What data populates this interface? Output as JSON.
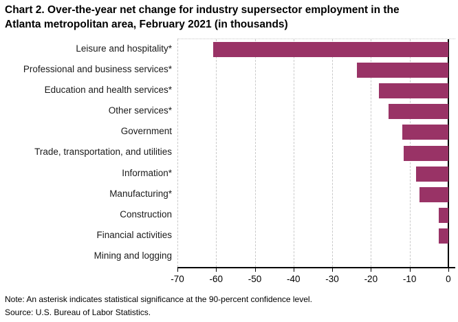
{
  "title": {
    "lines": [
      "Chart 2. Over-the-year net change for industry supersector employment in the",
      "Atlanta metropolitan area, February 2021 (in thousands)"
    ]
  },
  "chart_data": {
    "type": "bar",
    "orientation": "horizontal",
    "title": "Chart 2. Over-the-year net change for industry supersector employment in the Atlanta metropolitan area, February 2021 (in thousands)",
    "categories": [
      "Leisure and hospitality*",
      "Professional and business services*",
      "Education and health services*",
      "Other services*",
      "Government",
      "Trade, transportation, and utilities",
      "Information*",
      "Manufacturing*",
      "Construction",
      "Financial activities",
      "Mining and logging"
    ],
    "values": [
      -60.7,
      -23.7,
      -18.0,
      -15.4,
      -11.9,
      -11.5,
      -8.4,
      -7.4,
      -2.5,
      -2.4,
      0.0
    ],
    "xlabel": "",
    "ylabel": "",
    "xlim": [
      -70,
      1.8
    ],
    "xticks": [
      -70,
      -60,
      -50,
      -40,
      -30,
      -20,
      -10,
      0
    ],
    "bar_color": "#993366",
    "grid": "vertical-dashed-gray",
    "gridline_color": "#c9c9c9",
    "zero_axis_color": "#000000",
    "legend": "none"
  },
  "note": "Note: An asterisk indicates statistical significance at the 90-percent confidence level.",
  "source": "Source: U.S. Bureau of Labor Statistics."
}
